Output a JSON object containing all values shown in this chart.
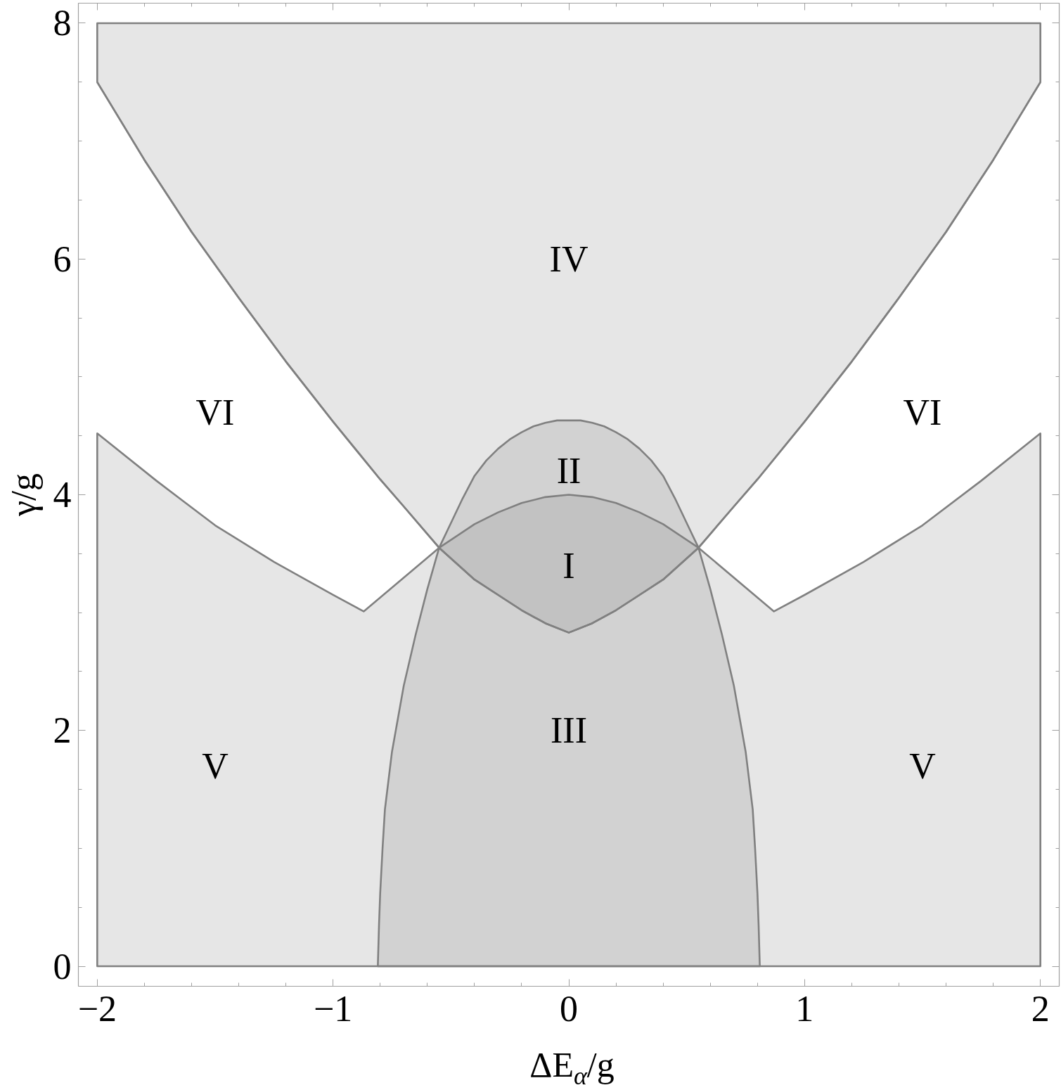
{
  "chart_data": {
    "type": "area",
    "xlabel": "ΔE$_{α}$/g",
    "ylabel": "γ/g",
    "xlim": [
      -2.08,
      2.08
    ],
    "ylim": [
      -0.17,
      8.17
    ],
    "xticks": [
      {
        "value": -2,
        "label": "−2"
      },
      {
        "value": -1.8,
        "label": null
      },
      {
        "value": -1.6,
        "label": null
      },
      {
        "value": -1.4,
        "label": null
      },
      {
        "value": -1.2,
        "label": null
      },
      {
        "value": -1,
        "label": "−1"
      },
      {
        "value": -0.8,
        "label": null
      },
      {
        "value": -0.6,
        "label": null
      },
      {
        "value": -0.4,
        "label": null
      },
      {
        "value": -0.2,
        "label": null
      },
      0,
      {
        "value": 0.2,
        "label": null
      },
      {
        "value": 0.4,
        "label": null
      },
      {
        "value": 0.6,
        "label": null
      },
      {
        "value": 0.8,
        "label": null
      },
      1,
      {
        "value": 1.2,
        "label": null
      },
      {
        "value": 1.4,
        "label": null
      },
      {
        "value": 1.6,
        "label": null
      },
      {
        "value": 1.8,
        "label": null
      },
      2
    ],
    "yticks": [
      0,
      {
        "value": 0.5,
        "label": null
      },
      {
        "value": 1,
        "label": null
      },
      {
        "value": 1.5,
        "label": null
      },
      2,
      {
        "value": 2.5,
        "label": null
      },
      {
        "value": 3,
        "label": null
      },
      {
        "value": 3.5,
        "label": null
      },
      4,
      {
        "value": 4.5,
        "label": null
      },
      {
        "value": 5,
        "label": null
      },
      {
        "value": 5.5,
        "label": null
      },
      6,
      {
        "value": 6.5,
        "label": null
      },
      {
        "value": 7,
        "label": null
      },
      {
        "value": 7.5,
        "label": null
      },
      8
    ],
    "series": [
      {
        "type": "line",
        "color": "#808080",
        "x": [
          -2,
          -1.8,
          -1.6,
          -1.4,
          -1.2,
          -1,
          -0.8,
          -0.7,
          -0.55,
          -0.4,
          -0.3,
          -0.2,
          -0.1,
          0,
          0.1,
          0.2,
          0.3,
          0.4,
          0.55,
          0.7,
          0.8,
          1,
          1.2,
          1.4,
          1.6,
          1.8,
          2
        ],
        "values": [
          7.5,
          6.84,
          6.23,
          5.67,
          5.13,
          4.62,
          4.13,
          3.9,
          3.55,
          3.28,
          3.15,
          3.02,
          2.91,
          2.83,
          2.91,
          3.02,
          3.15,
          3.28,
          3.55,
          3.9,
          4.13,
          4.62,
          5.13,
          5.67,
          6.23,
          6.84,
          7.5
        ],
        "lower": [
          7.5,
          6.84,
          6.23,
          5.67,
          5.13,
          4.62,
          4.13,
          3.9,
          3.55,
          3.28,
          3.15,
          3.02,
          2.91,
          2.83,
          2.91,
          3.02,
          3.15,
          3.28,
          3.55,
          3.9,
          4.13,
          4.62,
          5.13,
          5.67,
          6.23,
          6.84,
          7.5
        ],
        "upper": [
          8,
          8,
          8,
          8,
          8,
          8,
          8,
          8,
          8,
          8,
          8,
          8,
          8,
          8,
          8,
          8,
          8,
          8,
          8,
          8,
          8,
          8,
          8,
          8,
          8,
          8,
          8
        ]
      },
      {
        "color": "#808080",
        "x": [
          -2,
          -1.75,
          -1.5,
          -1.25,
          -1,
          -0.87,
          -0.55,
          -0.4,
          -0.3,
          -0.2,
          -0.1,
          0,
          0.1,
          0.2,
          0.3,
          0.4,
          0.55,
          0.87,
          1,
          1.25,
          1.5,
          1.75,
          2
        ],
        "values": [
          4.52,
          4.12,
          3.74,
          3.43,
          3.15,
          3.01,
          3.55,
          3.75,
          3.85,
          3.93,
          3.98,
          4.0,
          3.98,
          3.93,
          3.85,
          3.75,
          3.55,
          3.01,
          3.15,
          3.43,
          3.74,
          4.12,
          4.52
        ]
      },
      {
        "color": "#808080",
        "x": [
          -0.81,
          -0.805,
          -0.8,
          -0.79,
          -0.78,
          -0.75,
          -0.7,
          -0.65,
          -0.6,
          -0.55,
          -0.5,
          -0.45,
          -0.4,
          -0.35,
          -0.3,
          -0.25,
          -0.2,
          -0.15,
          -0.1,
          -0.05,
          0,
          0.05,
          0.1,
          0.15,
          0.2,
          0.25,
          0.3,
          0.35,
          0.4,
          0.45,
          0.5,
          0.55,
          0.6,
          0.65,
          0.7,
          0.75,
          0.78,
          0.79,
          0.8,
          0.805,
          0.81
        ],
        "values": [
          0,
          0.35,
          0.62,
          1.0,
          1.33,
          1.82,
          2.38,
          2.81,
          3.2,
          3.55,
          3.76,
          3.97,
          4.16,
          4.29,
          4.39,
          4.47,
          4.53,
          4.58,
          4.61,
          4.63,
          4.63,
          4.63,
          4.61,
          4.58,
          4.53,
          4.47,
          4.39,
          4.29,
          4.16,
          3.97,
          3.76,
          3.55,
          3.2,
          2.81,
          2.38,
          1.82,
          1.33,
          1.0,
          0.62,
          0.35,
          0
        ]
      }
    ],
    "annotations": [
      "IV",
      "VI",
      "VI",
      "II",
      "I",
      "III",
      "V",
      "V"
    ]
  }
}
